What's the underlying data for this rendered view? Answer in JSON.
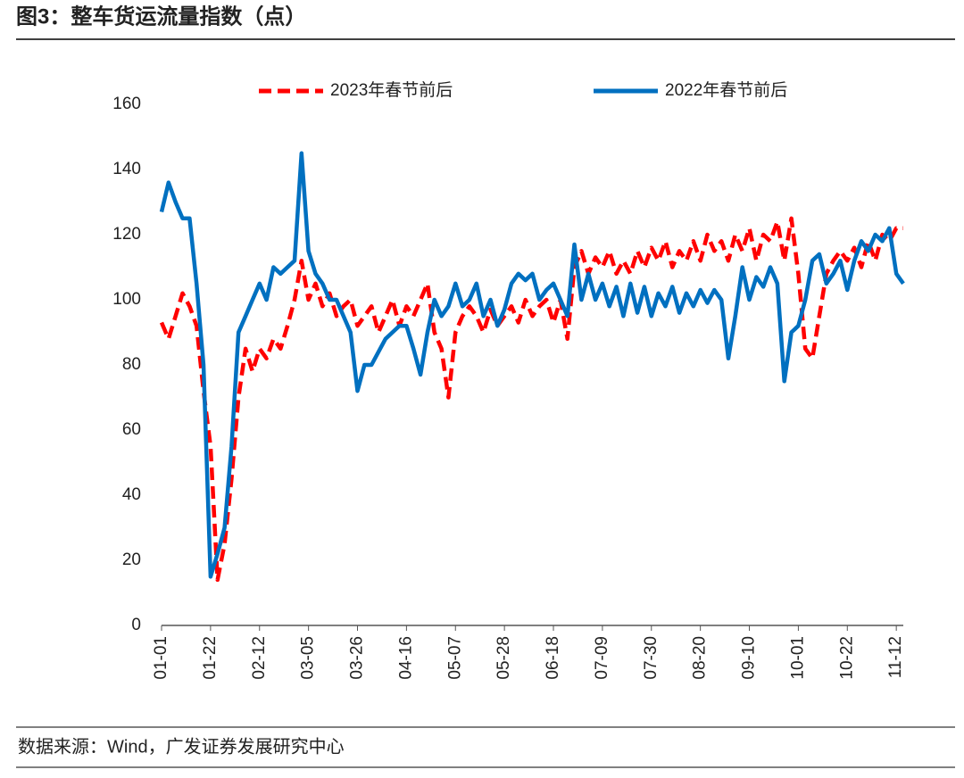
{
  "title": "图3：整车货运流量指数（点）",
  "source": "数据来源：Wind，广发证券发展研究中心",
  "chart_data": {
    "type": "line",
    "categories": [
      "01-01",
      null,
      null,
      null,
      null,
      null,
      null,
      "01-22",
      null,
      null,
      null,
      null,
      null,
      null,
      "02-12",
      null,
      null,
      null,
      null,
      null,
      null,
      "03-05",
      null,
      null,
      null,
      null,
      null,
      null,
      "03-26",
      null,
      null,
      null,
      null,
      null,
      null,
      "04-16",
      null,
      null,
      null,
      null,
      null,
      null,
      "05-07",
      null,
      null,
      null,
      null,
      null,
      null,
      "05-28",
      null,
      null,
      null,
      null,
      null,
      null,
      "06-18",
      null,
      null,
      null,
      null,
      null,
      null,
      "07-09",
      null,
      null,
      null,
      null,
      null,
      null,
      "07-30",
      null,
      null,
      null,
      null,
      null,
      null,
      "08-20",
      null,
      null,
      null,
      null,
      null,
      null,
      "09-10",
      null,
      null,
      null,
      null,
      null,
      null,
      "10-01",
      null,
      null,
      null,
      null,
      null,
      null,
      "10-22",
      null,
      null,
      null,
      null,
      null,
      null,
      "11-12",
      null
    ],
    "series": [
      {
        "name": "2023年春节前后",
        "color": "#ff0000",
        "dashed": true,
        "values": [
          93,
          88,
          95,
          102,
          98,
          92,
          72,
          55,
          14,
          25,
          45,
          70,
          85,
          78,
          85,
          82,
          88,
          85,
          92,
          100,
          112,
          100,
          105,
          98,
          102,
          95,
          98,
          100,
          92,
          95,
          98,
          90,
          95,
          100,
          92,
          98,
          95,
          100,
          105,
          90,
          85,
          70,
          90,
          95,
          98,
          95,
          90,
          97,
          92,
          95,
          98,
          93,
          100,
          95,
          98,
          100,
          93,
          100,
          88,
          110,
          115,
          108,
          113,
          110,
          115,
          108,
          112,
          108,
          115,
          110,
          116,
          112,
          118,
          110,
          115,
          112,
          118,
          112,
          120,
          115,
          118,
          112,
          120,
          115,
          122,
          112,
          120,
          118,
          124,
          112,
          125,
          108,
          85,
          82,
          95,
          108,
          112,
          115,
          112,
          116,
          110,
          118,
          112,
          120,
          118,
          122,
          122
        ]
      },
      {
        "name": "2022年春节前后",
        "color": "#0070c0",
        "dashed": false,
        "values": [
          127,
          136,
          130,
          125,
          125,
          105,
          80,
          15,
          22,
          30,
          55,
          90,
          95,
          100,
          105,
          100,
          110,
          108,
          110,
          112,
          145,
          115,
          108,
          105,
          100,
          100,
          95,
          90,
          72,
          80,
          80,
          84,
          88,
          90,
          92,
          92,
          85,
          77,
          90,
          100,
          95,
          98,
          105,
          98,
          100,
          105,
          95,
          100,
          92,
          97,
          105,
          108,
          106,
          108,
          100,
          103,
          105,
          100,
          95,
          117,
          100,
          108,
          100,
          105,
          98,
          104,
          95,
          105,
          96,
          104,
          95,
          102,
          98,
          104,
          96,
          102,
          98,
          103,
          99,
          103,
          100,
          82,
          95,
          110,
          100,
          107,
          104,
          110,
          105,
          75,
          90,
          92,
          100,
          112,
          114,
          105,
          108,
          112,
          103,
          112,
          118,
          115,
          120,
          118,
          122,
          108,
          105
        ]
      }
    ],
    "ylim": [
      0,
      160
    ],
    "yticks": [
      0,
      20,
      40,
      60,
      80,
      100,
      120,
      140,
      160
    ],
    "grid": false,
    "legend": "top"
  }
}
